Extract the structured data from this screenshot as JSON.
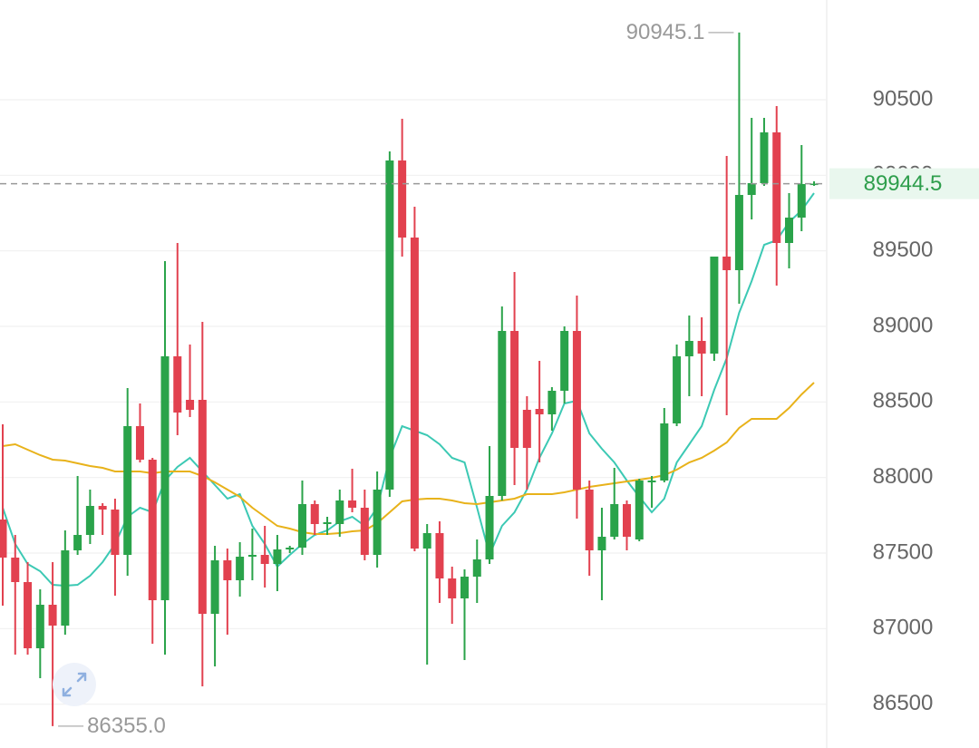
{
  "chart_data": {
    "type": "candlestick",
    "ylim": [
      86210,
      91160
    ],
    "yticks": [
      86500,
      87000,
      87500,
      88000,
      88500,
      89000,
      89500,
      90000,
      90500
    ],
    "up_color": "#2aa34a",
    "down_color": "#e2414f",
    "grid": true,
    "open": [
      87722,
      87470,
      87308,
      86870,
      87158,
      87020,
      87518,
      87620,
      87812,
      87788,
      87488,
      88340,
      88118,
      87188,
      88802,
      88514,
      88514,
      87098,
      87452,
      87320,
      87476,
      87488,
      87428,
      87524,
      87536,
      87824,
      87692,
      87692,
      87848,
      87800,
      87488,
      87920,
      90098,
      89588,
      87530,
      87632,
      87332,
      87200,
      87344,
      87458,
      87878,
      88970,
      88448,
      88454,
      88418,
      88574,
      88970,
      87920,
      87518,
      87608,
      87824,
      87590,
      87968,
      87980,
      88358,
      88802,
      88904,
      88820,
      89462,
      89372,
      89870,
      89948,
      90284,
      89552,
      89720,
      89942
    ],
    "close": [
      87470,
      87308,
      86870,
      87158,
      87020,
      87518,
      87620,
      87812,
      87788,
      87488,
      88340,
      88118,
      87188,
      88802,
      88430,
      88448,
      87098,
      87452,
      87320,
      87476,
      87488,
      87428,
      87524,
      87536,
      87824,
      87692,
      87704,
      87848,
      87800,
      87488,
      87920,
      90098,
      89588,
      87530,
      87632,
      87332,
      87200,
      87344,
      87458,
      87878,
      88970,
      88196,
      88196,
      88418,
      88574,
      88970,
      87920,
      87518,
      87608,
      87824,
      87608,
      87980,
      87980,
      88358,
      88802,
      88904,
      88820,
      89462,
      89372,
      89870,
      89948,
      90284,
      89552,
      89720,
      89942,
      89944.5
    ],
    "high": [
      88352,
      87620,
      87440,
      87260,
      87440,
      87650,
      88010,
      87920,
      87830,
      87860,
      88592,
      88490,
      88130,
      89432,
      89552,
      88880,
      89030,
      87548,
      87530,
      87572,
      87662,
      87680,
      87620,
      87548,
      87980,
      87848,
      87740,
      87920,
      88058,
      87920,
      88040,
      90158,
      90374,
      89792,
      87692,
      87710,
      87410,
      87392,
      87590,
      88208,
      89132,
      89360,
      88538,
      88772,
      88598,
      89000,
      89204,
      87980,
      87800,
      88064,
      87848,
      87992,
      88010,
      88460,
      88880,
      89072,
      89060,
      89462,
      90128,
      90945.1,
      90380,
      90380,
      90458,
      89882,
      90200,
      89960
    ],
    "low": [
      87152,
      86828,
      86828,
      86672,
      86355,
      86960,
      87488,
      87560,
      87620,
      87218,
      87350,
      88100,
      86900,
      86828,
      88280,
      88400,
      86618,
      86750,
      86960,
      87212,
      87320,
      87272,
      87248,
      87500,
      87488,
      87620,
      87620,
      87608,
      87770,
      87452,
      87404,
      87872,
      89462,
      87512,
      86762,
      87170,
      87032,
      86792,
      87170,
      87428,
      87848,
      87950,
      87920,
      88100,
      88310,
      88490,
      87728,
      87350,
      87188,
      87590,
      87518,
      87578,
      87800,
      87968,
      88340,
      88538,
      88538,
      88772,
      88412,
      89150,
      89708,
      89930,
      89270,
      89384,
      89630,
      89930
    ],
    "lines": [
      {
        "color": "#3cc9b4",
        "values": [
          87800,
          87560,
          87428,
          87380,
          87290,
          87284,
          87290,
          87350,
          87440,
          87560,
          87740,
          87800,
          87770,
          87980,
          88070,
          88130,
          88040,
          87950,
          87860,
          87890,
          87680,
          87560,
          87410,
          87488,
          87560,
          87620,
          87650,
          87710,
          87740,
          87680,
          87800,
          88130,
          88340,
          88310,
          88280,
          88220,
          88130,
          88100,
          87800,
          87488,
          87680,
          87770,
          87920,
          88130,
          88292,
          88490,
          88508,
          88292,
          88190,
          88100,
          87980,
          87872,
          87770,
          87860,
          88100,
          88220,
          88340,
          88580,
          88790,
          89090,
          89300,
          89540,
          89570,
          89690,
          89768,
          89882
        ]
      },
      {
        "color": "#e8b21a",
        "values": [
          88208,
          88220,
          88184,
          88148,
          88118,
          88112,
          88094,
          88076,
          88064,
          88040,
          88040,
          88040,
          88028,
          88040,
          88040,
          88040,
          88010,
          87968,
          87920,
          87872,
          87800,
          87740,
          87680,
          87662,
          87638,
          87626,
          87626,
          87632,
          87644,
          87650,
          87698,
          87770,
          87842,
          87854,
          87860,
          87860,
          87848,
          87830,
          87824,
          87836,
          87848,
          87860,
          87890,
          87890,
          87890,
          87902,
          87920,
          87938,
          87950,
          87962,
          87974,
          87986,
          87998,
          88016,
          88052,
          88100,
          88130,
          88178,
          88232,
          88328,
          88388,
          88388,
          88388,
          88460,
          88550,
          88628
        ]
      }
    ],
    "last_price": 89944.5,
    "annotations": [
      {
        "value": 90945.1,
        "label": "90945.1"
      },
      {
        "value": 86355,
        "label": "86355.0"
      }
    ]
  }
}
